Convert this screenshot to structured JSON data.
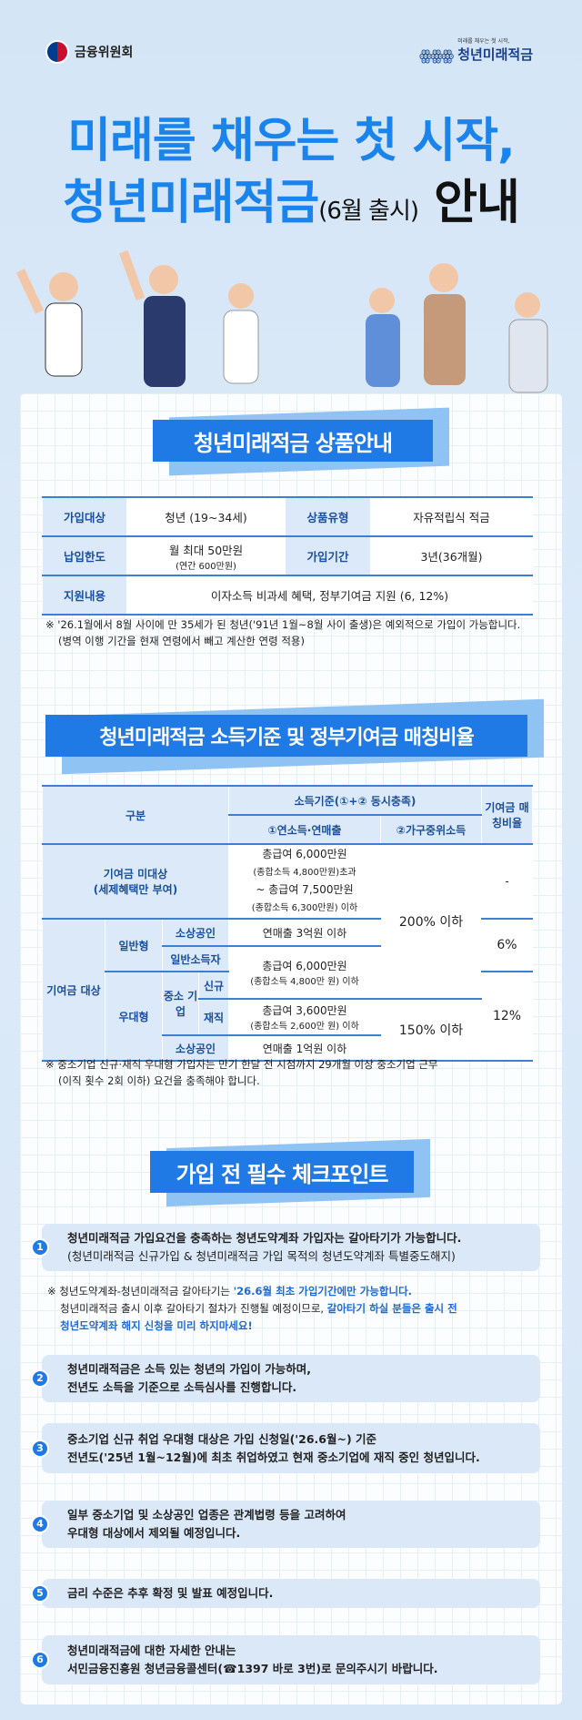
{
  "header": {
    "left_logo": "금융위원회",
    "right_logo_sub": "미래를 채우는 첫 시작,",
    "right_logo_name": "청년미래적금"
  },
  "hero": {
    "line1": "미래를 채우는 첫 시작,",
    "line2_main": "청년미래적금",
    "line2_paren": "(6월 출시)",
    "line2_end": "안내"
  },
  "section1": {
    "title": "청년미래적금 상품안내",
    "rows": [
      {
        "label1": "가입대상",
        "value1": "청년 (19~34세)",
        "label2": "상품유형",
        "value2": "자유적립식 적금"
      },
      {
        "label1": "납입한도",
        "value1": "월 최대 50만원",
        "value1_sub": "(연간 600만원)",
        "label2": "가입기간",
        "value2": "3년(36개월)"
      },
      {
        "label1": "지원내용",
        "value1": "이자소득 비과세 혜택, 정부기여금 지원 (6, 12%)"
      }
    ],
    "note_line1": "※ '26.1월에서 8월 사이에 만 35세가 된 청년('91년 1월~8월 사이 출생)은 예외적으로 가입이 가능합니다.",
    "note_line2": "(병역 이행 기간을 현재 연령에서 빼고 계산한 연령 적용)"
  },
  "section2": {
    "title": "청년미래적금 소득기준 및 정부기여금 매칭비율",
    "head": {
      "category": "구분",
      "income": "소득기준(①+② 동시충족)",
      "income1": "①연소득·연매출",
      "income2": "②가구중위소득",
      "ratio": "기여금 매칭비율"
    },
    "cells": {
      "non_target": "기여금 미대상",
      "non_target_sub": "(세제혜택만 부여)",
      "nt_inc_1": "총급여 6,000만원",
      "nt_inc_2": "(종합소득 4,800만원)초과",
      "nt_inc_3": "~ 총급여 7,500만원",
      "nt_inc_4": "(종합소득 6,300만원) 이하",
      "pct200": "200% 이하",
      "pct150": "150% 이하",
      "ratio_none": "-",
      "ratio6": "6%",
      "ratio12": "12%",
      "target": "기여금 대상",
      "general": "일반형",
      "preferred": "우대형",
      "small_biz": "소상공인",
      "general_earner": "일반소득자",
      "sme": "중소 기업",
      "new": "신규",
      "employed": "재직",
      "rev3": "연매출 3억원 이하",
      "gen_inc_1": "총급여 6,000만원",
      "gen_inc_2": "(종합소득 4,800만 원) 이하",
      "pref_inc_1": "총급여 3,600만원",
      "pref_inc_2": "(종합소득 2,600만 원) 이하",
      "rev1": "연매출 1억원 이하"
    },
    "note_line1": "※ 중소기업 신규·재직 우대형 가입자는 만기 한달 전 시점까지 29개월 이상 중소기업 근무",
    "note_line2": "(이직 횟수 2회 이하) 요건을 충족해야 합니다."
  },
  "section3": {
    "title": "가입 전 필수 체크포인트",
    "items": [
      {
        "num": "1",
        "line1": "청년미래적금 가입요건을 충족하는 청년도약계좌 가입자는 갈아타기가 가능합니다.",
        "line2": "(청년미래적금 신규가입 & 청년미래적금 가입 목적의 청년도약계좌 특별중도해지)"
      },
      {
        "num": "2",
        "line1": "청년미래적금은 소득 있는 청년의 가입이 가능하며,",
        "line2": "전년도 소득을 기준으로 소득심사를 진행합니다."
      },
      {
        "num": "3",
        "line1": "중소기업 신규 취업 우대형 대상은 가입 신청일('26.6월~) 기준",
        "line2": "전년도('25년 1월~12월)에 최초 취업하였고 현재 중소기업에 재직 중인 청년입니다."
      },
      {
        "num": "4",
        "line1": "일부 중소기업 및 소상공인 업종은 관계법령 등을 고려하여",
        "line2": "우대형 대상에서 제외될 예정입니다."
      },
      {
        "num": "5",
        "line1": "금리 수준은 추후 확정 및 발표 예정입니다."
      },
      {
        "num": "6",
        "line1": "청년미래적금에 대한 자세한 안내는",
        "line2_a": "서민금융진흥원 청년금융콜센터(",
        "line2_b": "1397 바로 3번)로 문의주시기 바랍니다."
      }
    ],
    "note": {
      "a": "※ 청년도약계좌-청년미래적금 갈아타기는 ",
      "b": "'26.6월 최초 가입기간에만 가능합니다.",
      "c": "청년미래적금 출시 이후 갈아타기 절차가 진행될 예정이므로, ",
      "d": "갈아타기 하실 분들은 출시 전",
      "e": "청년도약계좌 해지 신청을 미리 하지마세요!"
    }
  },
  "colors": {
    "accent": "#1f7ae6",
    "label_bg": "#dbe9f8",
    "label_text": "#1a4f9e"
  }
}
